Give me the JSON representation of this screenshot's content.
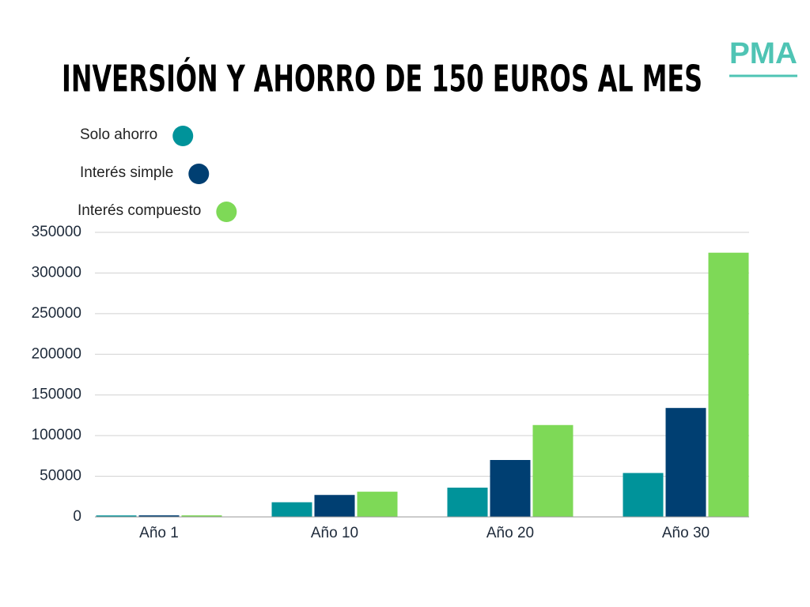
{
  "logo": "PMA",
  "chart_data": {
    "type": "bar",
    "title": "INVERSIÓN Y AHORRO DE 150 EUROS AL MES",
    "categories": [
      "Año 1",
      "Año 10",
      "Año 20",
      "Año 30"
    ],
    "series": [
      {
        "name": "Solo ahorro",
        "color": "#00939a",
        "values": [
          1800,
          18000,
          36000,
          54000
        ]
      },
      {
        "name": "Interés simple",
        "color": "#003f72",
        "values": [
          1900,
          27000,
          70000,
          134000
        ]
      },
      {
        "name": "Interés compuesto",
        "color": "#7ed957",
        "values": [
          1900,
          31000,
          113000,
          325000
        ]
      }
    ],
    "ylim": [
      0,
      350000
    ],
    "yticks": [
      0,
      50000,
      100000,
      150000,
      200000,
      250000,
      300000,
      350000
    ],
    "grid": true
  }
}
